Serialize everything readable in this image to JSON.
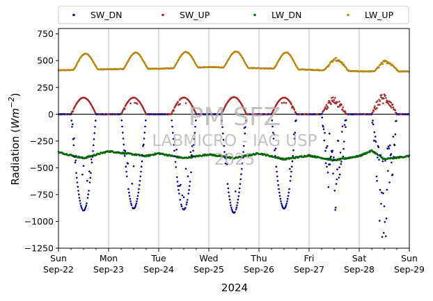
{
  "chart_data": {
    "type": "scatter",
    "xlabel": "2024",
    "ylabel": "Radiation (Wm⁻²)",
    "ylabel_base": "Radiation (",
    "ylabel_unit": "Wm",
    "ylabel_exp": "−2",
    "ylabel_close": ")",
    "ylim": [
      -1250,
      800
    ],
    "yticks": [
      -1250,
      -1000,
      -750,
      -500,
      -250,
      0,
      250,
      500,
      750
    ],
    "ytick_labels": [
      "−1250",
      "−1000",
      "−750",
      "−500",
      "−250",
      "0",
      "250",
      "500",
      "750"
    ],
    "xlim": [
      "2024-09-22",
      "2024-09-29"
    ],
    "xticks": [
      {
        "day": "Sun",
        "date": "Sep-22"
      },
      {
        "day": "Mon",
        "date": "Sep-23"
      },
      {
        "day": "Tue",
        "date": "Sep-24"
      },
      {
        "day": "Wed",
        "date": "Sep-25"
      },
      {
        "day": "Thu",
        "date": "Sep-26"
      },
      {
        "day": "Fri",
        "date": "Sep-27"
      },
      {
        "day": "Sat",
        "date": "Sep-28"
      },
      {
        "day": "Sun",
        "date": "Sep-29"
      }
    ],
    "grid": "vertical",
    "zero_line": true,
    "legend": "top, outside, 4 columns",
    "watermark": [
      "PM SFZ",
      "LABMICRO - IAG USP",
      "2025"
    ],
    "series": [
      {
        "name": "SW_DN",
        "color": "#00008b",
        "days": [
          "2024-09-22",
          "2024-09-23",
          "2024-09-24",
          "2024-09-25",
          "2024-09-26",
          "2024-09-27",
          "2024-09-28"
        ],
        "peak": [
          -900,
          -880,
          -890,
          -920,
          -880,
          -830,
          -1050
        ],
        "cloudy": [
          0,
          0,
          0,
          0,
          0,
          1,
          1
        ]
      },
      {
        "name": "SW_UP",
        "color": "#a52a2a",
        "days": [
          "2024-09-22",
          "2024-09-23",
          "2024-09-24",
          "2024-09-25",
          "2024-09-26",
          "2024-09-27",
          "2024-09-28"
        ],
        "peak": [
          155,
          155,
          155,
          160,
          155,
          150,
          185
        ],
        "night": 0
      },
      {
        "name": "LW_DN",
        "color": "#006400",
        "start": -355,
        "points": [
          [
            "2024-09-22",
            -355
          ],
          [
            "2024-09-22T12:00",
            -410
          ],
          [
            "2024-09-23",
            -345
          ],
          [
            "2024-09-23T18:00",
            -390
          ],
          [
            "2024-09-24",
            -365
          ],
          [
            "2024-09-24T12:00",
            -410
          ],
          [
            "2024-09-25",
            -375
          ],
          [
            "2024-09-25T12:00",
            -410
          ],
          [
            "2024-09-26",
            -365
          ],
          [
            "2024-09-26T12:00",
            -420
          ],
          [
            "2024-09-27",
            -385
          ],
          [
            "2024-09-27T12:00",
            -430
          ],
          [
            "2024-09-28",
            -390
          ],
          [
            "2024-09-28T06:00",
            -340
          ],
          [
            "2024-09-28T12:00",
            -420
          ],
          [
            "2024-09-29",
            -390
          ]
        ]
      },
      {
        "name": "LW_UP",
        "color": "#b8860b",
        "days": [
          "2024-09-22",
          "2024-09-23",
          "2024-09-24",
          "2024-09-25",
          "2024-09-26",
          "2024-09-27",
          "2024-09-28"
        ],
        "night": [
          410,
          420,
          425,
          440,
          430,
          415,
          400
        ],
        "peak": [
          565,
          575,
          580,
          585,
          575,
          510,
          490
        ]
      }
    ]
  }
}
